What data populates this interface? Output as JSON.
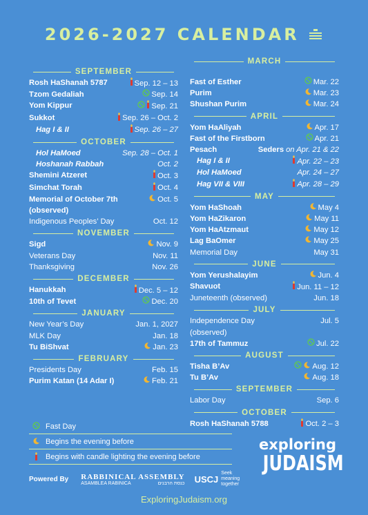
{
  "header": {
    "title": "2026-2027 CALENDAR"
  },
  "columns": [
    {
      "sections": [
        {
          "name": "SEPTEMBER",
          "rows": [
            {
              "name": "Rosh HaShanah 5787",
              "date": "Sep. 12 – 13",
              "icon": "candle",
              "style": "bold"
            },
            {
              "name": "Tzom Gedaliah",
              "date": "Sep. 14",
              "icon": "fast",
              "style": "bold"
            },
            {
              "name": "Yom Kippur",
              "date": "Sep. 21",
              "icon": "fast candle",
              "style": "bold"
            },
            {
              "name": "Sukkot",
              "date": "Sep. 26 – Oct. 2",
              "icon": "candle",
              "style": "bold"
            },
            {
              "name": "Hag I & II",
              "date": "Sep. 26 – 27",
              "icon": "candle",
              "style": "sub"
            }
          ]
        },
        {
          "name": "OCTOBER",
          "rows": [
            {
              "name": "Hol HaMoed",
              "date": "Sep. 28 – Oct. 1",
              "style": "sub"
            },
            {
              "name": "Hoshanah Rabbah",
              "date": "Oct. 2",
              "style": "sub"
            },
            {
              "name": "Shemini Atzeret",
              "date": "Oct. 3",
              "icon": "candle",
              "style": "bold"
            },
            {
              "name": "Simchat Torah",
              "date": "Oct. 4",
              "icon": "candle",
              "style": "bold"
            },
            {
              "name": "Memorial of October 7th (observed)",
              "date": "Oct. 5",
              "icon": "moon",
              "style": "bold"
            },
            {
              "name": "Indigenous Peoples’ Day",
              "date": "Oct. 12",
              "style": "regular"
            }
          ]
        },
        {
          "name": "NOVEMBER",
          "rows": [
            {
              "name": "Sigd",
              "date": "Nov. 9",
              "icon": "moon",
              "style": "bold"
            },
            {
              "name": "Veterans Day",
              "date": "Nov. 11",
              "style": "regular"
            },
            {
              "name": "Thanksgiving",
              "date": "Nov. 26",
              "style": "regular"
            }
          ]
        },
        {
          "name": "DECEMBER",
          "rows": [
            {
              "name": "Hanukkah",
              "date": "Dec. 5 – 12",
              "icon": "candle",
              "style": "bold"
            },
            {
              "name": "10th of Tevet",
              "date": "Dec. 20",
              "icon": "fast",
              "style": "bold"
            }
          ]
        },
        {
          "name": "JANUARY",
          "rows": [
            {
              "name": "New Year’s Day",
              "date": "Jan. 1, 2027",
              "style": "regular"
            },
            {
              "name": "MLK Day",
              "date": "Jan. 18",
              "style": "regular"
            },
            {
              "name": "Tu BiShvat",
              "date": "Jan. 23",
              "icon": "moon",
              "style": "bold"
            }
          ]
        },
        {
          "name": "FEBRUARY",
          "rows": [
            {
              "name": "Presidents Day",
              "date": "Feb. 15",
              "style": "regular"
            },
            {
              "name": "Purim Katan (14 Adar I)",
              "date": "Feb. 21",
              "icon": "moon",
              "style": "bold"
            }
          ]
        }
      ]
    },
    {
      "sections": [
        {
          "name": "MARCH",
          "rows": [
            {
              "name": "Fast of Esther",
              "date": "Mar. 22",
              "icon": "fast",
              "style": "bold"
            },
            {
              "name": "Purim",
              "date": "Mar. 23",
              "icon": "moon",
              "style": "bold"
            },
            {
              "name": "Shushan Purim",
              "date": "Mar. 24",
              "icon": "moon",
              "style": "bold"
            }
          ]
        },
        {
          "name": "APRIL",
          "rows": [
            {
              "name": "Yom HaAliyah",
              "date": "Apr. 17",
              "icon": "moon",
              "style": "bold"
            },
            {
              "name": "Fast of the Firstborn",
              "date": "Apr. 21",
              "icon": "fast",
              "style": "bold"
            },
            {
              "name": "Pesach",
              "prefix": "Seders",
              "date": "on Apr. 21 & 22",
              "style": "bold"
            },
            {
              "name": "Hag I & II",
              "date": "Apr. 22 – 23",
              "icon": "candle",
              "style": "sub"
            },
            {
              "name": "Hol HaMoed",
              "date": "Apr. 24 – 27",
              "style": "sub"
            },
            {
              "name": "Hag VII & VIII",
              "date": "Apr. 28 – 29",
              "icon": "candle",
              "style": "sub"
            }
          ]
        },
        {
          "name": "MAY",
          "rows": [
            {
              "name": "Yom HaShoah",
              "date": "May 4",
              "icon": "moon",
              "style": "bold"
            },
            {
              "name": "Yom HaZikaron",
              "date": "May 11",
              "icon": "moon",
              "style": "bold"
            },
            {
              "name": "Yom HaAtzmaut",
              "date": "May 12",
              "icon": "moon",
              "style": "bold"
            },
            {
              "name": "Lag BaOmer",
              "date": "May 25",
              "icon": "moon",
              "style": "bold"
            },
            {
              "name": "Memorial Day",
              "date": "May 31",
              "style": "regular"
            }
          ]
        },
        {
          "name": "JUNE",
          "rows": [
            {
              "name": "Yom Yerushalayim",
              "date": "Jun. 4",
              "icon": "moon",
              "style": "bold"
            },
            {
              "name": "Shavuot",
              "date": "Jun. 11 – 12",
              "icon": "candle",
              "style": "bold"
            },
            {
              "name": "Juneteenth (observed)",
              "date": "Jun. 18",
              "style": "regular"
            }
          ]
        },
        {
          "name": "JULY",
          "rows": [
            {
              "name": "Independence Day (observed)",
              "date": "Jul. 5",
              "style": "regular"
            },
            {
              "name": "17th of Tammuz",
              "date": "Jul. 22",
              "icon": "fast",
              "style": "bold"
            }
          ]
        },
        {
          "name": "AUGUST",
          "rows": [
            {
              "name": "Tisha B’Av",
              "date": "Aug. 12",
              "icon": "fast moon",
              "style": "bold"
            },
            {
              "name": "Tu B’Av",
              "date": "Aug. 18",
              "icon": "moon",
              "style": "bold"
            }
          ]
        },
        {
          "name": "SEPTEMBER",
          "rows": [
            {
              "name": "Labor Day",
              "date": "Sep. 6",
              "style": "regular"
            }
          ]
        },
        {
          "name": "OCTOBER",
          "rows": [
            {
              "name": "Rosh HaShanah 5788",
              "date": "Oct. 2 – 3",
              "icon": "candle",
              "style": "bold"
            }
          ]
        }
      ]
    }
  ],
  "legend": [
    {
      "icon": "fast",
      "label": "Fast Day"
    },
    {
      "icon": "moon",
      "label": "Begins the evening before"
    },
    {
      "icon": "candle",
      "label": "Begins with candle lighting the evening before"
    }
  ],
  "footer": {
    "powered_by": "Powered By",
    "ra_name": "Rabbinical Assembly",
    "ra_spanish": "Asamblea Rabinica",
    "ra_hebrew": "כנסת הרבנים",
    "uscj": "USCJ",
    "uscj_tagline": "Seek meaning together",
    "logo_top": "exploring",
    "logo_bottom": "JUDAISM",
    "url": "ExploringJudaism.org"
  }
}
